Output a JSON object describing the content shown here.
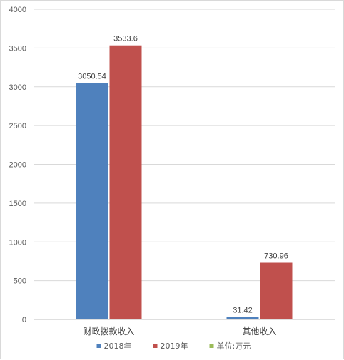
{
  "chart_data": {
    "type": "bar",
    "title": "",
    "xlabel": "",
    "ylabel": "",
    "categories": [
      "财政拨款收入",
      "其他收入"
    ],
    "series": [
      {
        "name": "2018年",
        "values": [
          3050.54,
          31.42
        ],
        "labels": [
          "3050.54",
          "31.42"
        ],
        "color": "#4f81bd"
      },
      {
        "name": "2019年",
        "values": [
          3533.6,
          730.96
        ],
        "labels": [
          "3533.6",
          "730.96"
        ],
        "color": "#c0504d"
      },
      {
        "name": "单位:万元",
        "values": [
          null,
          null
        ],
        "labels": [
          "",
          ""
        ],
        "color": "#9bbb59"
      }
    ],
    "ylim": [
      0,
      4000
    ],
    "yticks": [
      "0",
      "500",
      "1000",
      "1500",
      "2000",
      "2500",
      "3000",
      "3500",
      "4000"
    ],
    "grid": true,
    "legend_position": "bottom"
  }
}
